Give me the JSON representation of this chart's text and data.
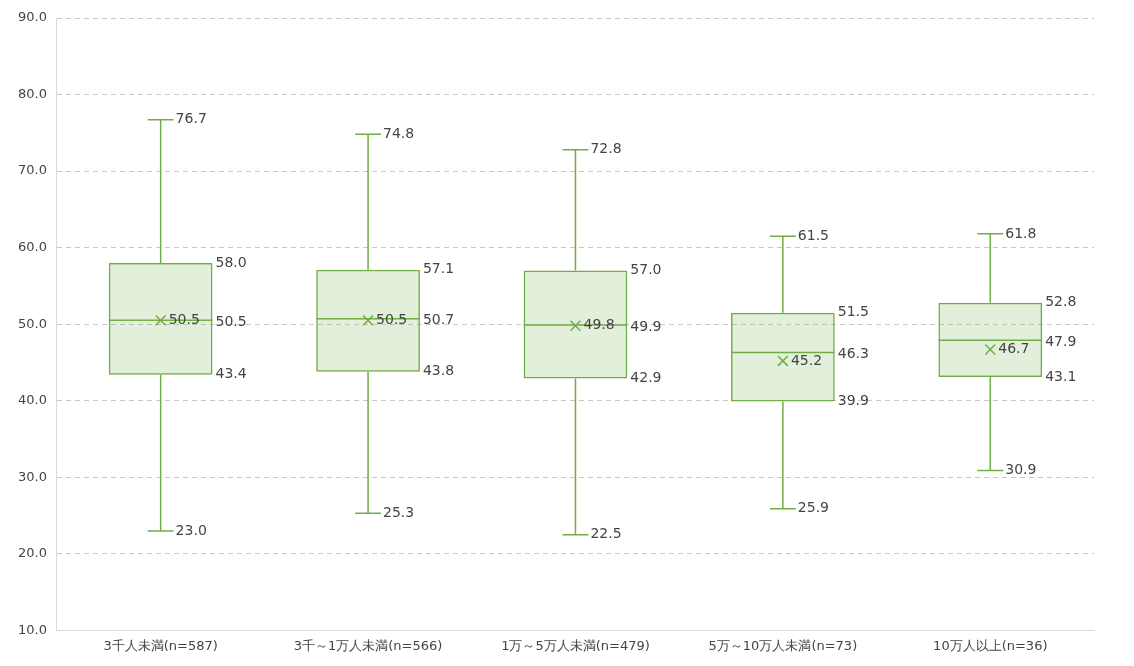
{
  "chart_data": {
    "type": "box",
    "categories": [
      "3千人未満(n=587)",
      "3千～1万人未満(n=566)",
      "1万～5万人未満(n=479)",
      "5万～10万人未満(n=73)",
      "10万人以上(n=36)"
    ],
    "series": [
      {
        "color": "#70ad47",
        "boxes": [
          {
            "low": 23.0,
            "q1": 43.4,
            "median": 50.5,
            "q3": 58.0,
            "high": 76.7,
            "mean": 50.5
          },
          {
            "low": 25.3,
            "q1": 43.8,
            "median": 50.7,
            "q3": 57.1,
            "high": 74.8,
            "mean": 50.5
          },
          {
            "low": 22.5,
            "q1": 42.9,
            "median": 49.9,
            "q3": 57.0,
            "high": 72.8,
            "mean": 49.8
          },
          {
            "low": 25.9,
            "q1": 39.9,
            "median": 46.3,
            "q3": 51.5,
            "high": 61.5,
            "mean": 45.2
          },
          {
            "low": 30.9,
            "q1": 43.1,
            "median": 47.9,
            "q3": 52.8,
            "high": 61.8,
            "mean": 46.7
          }
        ]
      }
    ],
    "ylim": [
      10,
      90
    ],
    "yticks": [
      {
        "value": 10,
        "label": "10.0"
      },
      {
        "value": 20,
        "label": "20.0"
      },
      {
        "value": 30,
        "label": "30.0"
      },
      {
        "value": 40,
        "label": "40.0"
      },
      {
        "value": 50,
        "label": "50.0"
      },
      {
        "value": 60,
        "label": "60.0"
      },
      {
        "value": 70,
        "label": "70.0"
      },
      {
        "value": 80,
        "label": "80.0"
      },
      {
        "value": 90,
        "label": "90.0"
      }
    ],
    "grid": "y",
    "legend": false,
    "data_labels": true,
    "annotations": [
      {
        "text": "76.7",
        "x": "3千人未満(n=587)",
        "y": 76.7
      },
      {
        "text": "23.0",
        "x": "3千人未満(n=587)",
        "y": 23.0
      },
      {
        "text": "74.8",
        "x": "3千～1万人未満(n=566)",
        "y": 74.8
      },
      {
        "text": "25.3",
        "x": "3千～1万人未満(n=566)",
        "y": 25.3
      },
      {
        "text": "72.8",
        "x": "1万～5万人未満(n=479)",
        "y": 72.8
      },
      {
        "text": "22.5",
        "x": "1万～5万人未満(n=479)",
        "y": 22.5
      },
      {
        "text": "61.5",
        "x": "5万～10万人未満(n=73)",
        "y": 61.5
      },
      {
        "text": "25.9",
        "x": "5万～10万人未満(n=73)",
        "y": 25.9
      },
      {
        "text": "61.8",
        "x": "10万人以上(n=36)",
        "y": 61.8
      },
      {
        "text": "30.9",
        "x": "10万人以上(n=36)",
        "y": 30.9
      },
      "58.0",
      "50.5",
      "43.4",
      "50.5",
      "57.1",
      "50.7",
      "43.8",
      "50.5",
      "57.0",
      "49.9",
      "42.9",
      "49.8",
      "51.5",
      "46.3",
      "39.9",
      "45.2",
      "52.8",
      "47.9",
      "43.1",
      "46.7"
    ]
  }
}
